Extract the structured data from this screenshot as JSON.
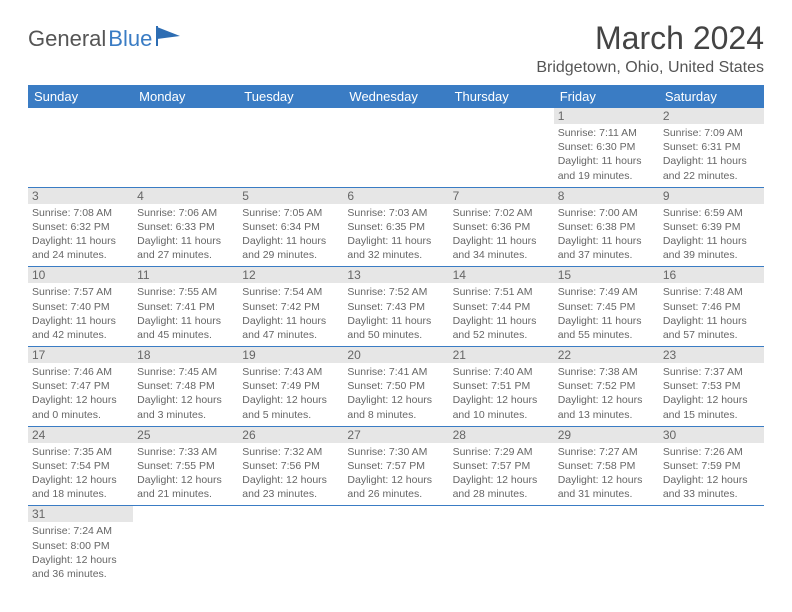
{
  "logo": {
    "word1": "General",
    "word2": "Blue",
    "flag_color": "#2d6db3"
  },
  "header": {
    "month": "March 2024",
    "location": "Bridgetown, Ohio, United States"
  },
  "colors": {
    "header_bg": "#3a7cc4",
    "header_text": "#ffffff",
    "daynum_bg": "#e6e6e6",
    "border": "#3a7cc4",
    "text": "#666666"
  },
  "columns": [
    "Sunday",
    "Monday",
    "Tuesday",
    "Wednesday",
    "Thursday",
    "Friday",
    "Saturday"
  ],
  "days": {
    "1": {
      "sunrise": "7:11 AM",
      "sunset": "6:30 PM",
      "dh": 11,
      "dm": 19
    },
    "2": {
      "sunrise": "7:09 AM",
      "sunset": "6:31 PM",
      "dh": 11,
      "dm": 22
    },
    "3": {
      "sunrise": "7:08 AM",
      "sunset": "6:32 PM",
      "dh": 11,
      "dm": 24
    },
    "4": {
      "sunrise": "7:06 AM",
      "sunset": "6:33 PM",
      "dh": 11,
      "dm": 27
    },
    "5": {
      "sunrise": "7:05 AM",
      "sunset": "6:34 PM",
      "dh": 11,
      "dm": 29
    },
    "6": {
      "sunrise": "7:03 AM",
      "sunset": "6:35 PM",
      "dh": 11,
      "dm": 32
    },
    "7": {
      "sunrise": "7:02 AM",
      "sunset": "6:36 PM",
      "dh": 11,
      "dm": 34
    },
    "8": {
      "sunrise": "7:00 AM",
      "sunset": "6:38 PM",
      "dh": 11,
      "dm": 37
    },
    "9": {
      "sunrise": "6:59 AM",
      "sunset": "6:39 PM",
      "dh": 11,
      "dm": 39
    },
    "10": {
      "sunrise": "7:57 AM",
      "sunset": "7:40 PM",
      "dh": 11,
      "dm": 42
    },
    "11": {
      "sunrise": "7:55 AM",
      "sunset": "7:41 PM",
      "dh": 11,
      "dm": 45
    },
    "12": {
      "sunrise": "7:54 AM",
      "sunset": "7:42 PM",
      "dh": 11,
      "dm": 47
    },
    "13": {
      "sunrise": "7:52 AM",
      "sunset": "7:43 PM",
      "dh": 11,
      "dm": 50
    },
    "14": {
      "sunrise": "7:51 AM",
      "sunset": "7:44 PM",
      "dh": 11,
      "dm": 52
    },
    "15": {
      "sunrise": "7:49 AM",
      "sunset": "7:45 PM",
      "dh": 11,
      "dm": 55
    },
    "16": {
      "sunrise": "7:48 AM",
      "sunset": "7:46 PM",
      "dh": 11,
      "dm": 57
    },
    "17": {
      "sunrise": "7:46 AM",
      "sunset": "7:47 PM",
      "dh": 12,
      "dm": 0
    },
    "18": {
      "sunrise": "7:45 AM",
      "sunset": "7:48 PM",
      "dh": 12,
      "dm": 3
    },
    "19": {
      "sunrise": "7:43 AM",
      "sunset": "7:49 PM",
      "dh": 12,
      "dm": 5
    },
    "20": {
      "sunrise": "7:41 AM",
      "sunset": "7:50 PM",
      "dh": 12,
      "dm": 8
    },
    "21": {
      "sunrise": "7:40 AM",
      "sunset": "7:51 PM",
      "dh": 12,
      "dm": 10
    },
    "22": {
      "sunrise": "7:38 AM",
      "sunset": "7:52 PM",
      "dh": 12,
      "dm": 13
    },
    "23": {
      "sunrise": "7:37 AM",
      "sunset": "7:53 PM",
      "dh": 12,
      "dm": 15
    },
    "24": {
      "sunrise": "7:35 AM",
      "sunset": "7:54 PM",
      "dh": 12,
      "dm": 18
    },
    "25": {
      "sunrise": "7:33 AM",
      "sunset": "7:55 PM",
      "dh": 12,
      "dm": 21
    },
    "26": {
      "sunrise": "7:32 AM",
      "sunset": "7:56 PM",
      "dh": 12,
      "dm": 23
    },
    "27": {
      "sunrise": "7:30 AM",
      "sunset": "7:57 PM",
      "dh": 12,
      "dm": 26
    },
    "28": {
      "sunrise": "7:29 AM",
      "sunset": "7:57 PM",
      "dh": 12,
      "dm": 28
    },
    "29": {
      "sunrise": "7:27 AM",
      "sunset": "7:58 PM",
      "dh": 12,
      "dm": 31
    },
    "30": {
      "sunrise": "7:26 AM",
      "sunset": "7:59 PM",
      "dh": 12,
      "dm": 33
    },
    "31": {
      "sunrise": "7:24 AM",
      "sunset": "8:00 PM",
      "dh": 12,
      "dm": 36
    }
  },
  "layout": {
    "first_day_column": 5,
    "num_days": 31
  },
  "labels": {
    "sunrise": "Sunrise:",
    "sunset": "Sunset:",
    "daylight": "Daylight:",
    "hours": "hours",
    "and": "and",
    "minutes": "minutes."
  }
}
